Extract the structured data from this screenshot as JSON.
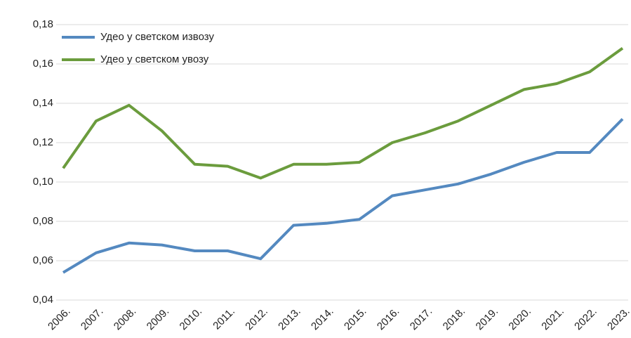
{
  "chart_data": {
    "type": "line",
    "categories": [
      "2006.",
      "2007.",
      "2008.",
      "2009.",
      "2010.",
      "2011.",
      "2012.",
      "2013.",
      "2014.",
      "2015.",
      "2016.",
      "2017.",
      "2018.",
      "2019.",
      "2020.",
      "2021.",
      "2022.",
      "2023."
    ],
    "series": [
      {
        "name": "Удео у светском извозу",
        "color": "#5489c0",
        "values": [
          0.054,
          0.064,
          0.069,
          0.068,
          0.065,
          0.065,
          0.061,
          0.078,
          0.079,
          0.081,
          0.093,
          0.096,
          0.099,
          0.104,
          0.11,
          0.115,
          0.115,
          0.132
        ]
      },
      {
        "name": "Удео у светском увозу",
        "color": "#6b9c3d",
        "values": [
          0.107,
          0.131,
          0.139,
          0.126,
          0.109,
          0.108,
          0.102,
          0.109,
          0.109,
          0.11,
          0.12,
          0.125,
          0.131,
          0.139,
          0.147,
          0.15,
          0.156,
          0.168
        ]
      }
    ],
    "ylim": [
      0.04,
      0.18
    ],
    "yticks": [
      {
        "value": 0.04,
        "label": "0,04"
      },
      {
        "value": 0.06,
        "label": "0,06"
      },
      {
        "value": 0.08,
        "label": "0,08"
      },
      {
        "value": 0.1,
        "label": "0,10"
      },
      {
        "value": 0.12,
        "label": "0,12"
      },
      {
        "value": 0.14,
        "label": "0,14"
      },
      {
        "value": 0.16,
        "label": "0,16"
      },
      {
        "value": 0.18,
        "label": "0,18"
      }
    ],
    "grid": true,
    "legend": "top-left"
  }
}
